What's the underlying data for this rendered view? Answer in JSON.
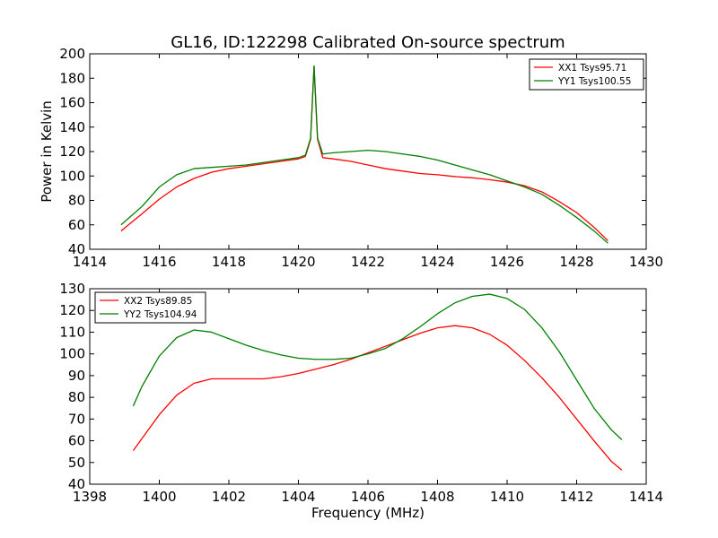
{
  "figure": {
    "title": "GL16, ID:122298 Calibrated On-source spectrum"
  },
  "chart_data": [
    {
      "type": "line",
      "title": "GL16, ID:122298 Calibrated On-source spectrum",
      "xlabel": "",
      "ylabel": "Power in Kelvin",
      "xlim": [
        1414,
        1430
      ],
      "ylim": [
        40,
        200
      ],
      "xticks": [
        "1414",
        "1416",
        "1418",
        "1420",
        "1422",
        "1424",
        "1426",
        "1428",
        "1430"
      ],
      "yticks": [
        "40",
        "60",
        "80",
        "100",
        "120",
        "140",
        "160",
        "180",
        "200"
      ],
      "legend_position": "top-right",
      "grid": false,
      "series": [
        {
          "name": "XX1 Tsys95.71",
          "color": "#ff0000",
          "x": [
            1414.9,
            1415.5,
            1416,
            1416.5,
            1417,
            1417.5,
            1418,
            1418.5,
            1419,
            1419.5,
            1420,
            1420.2,
            1420.35,
            1420.45,
            1420.55,
            1420.7,
            1421,
            1421.5,
            1422,
            1422.5,
            1423,
            1423.5,
            1424,
            1424.5,
            1425,
            1425.5,
            1426,
            1426.5,
            1427,
            1427.5,
            1428,
            1428.5,
            1428.9
          ],
          "y": [
            55,
            69,
            81,
            91,
            98,
            103,
            106,
            108,
            110,
            112,
            114,
            116,
            130,
            190,
            130,
            115,
            114,
            112,
            109,
            106,
            104,
            102,
            101,
            99.5,
            98.5,
            97,
            95,
            92,
            87,
            79,
            70,
            58,
            47
          ]
        },
        {
          "name": "YY1 Tsys100.55",
          "color": "#008000",
          "x": [
            1414.9,
            1415.5,
            1416,
            1416.5,
            1417,
            1417.5,
            1418,
            1418.5,
            1419,
            1419.5,
            1420,
            1420.2,
            1420.35,
            1420.45,
            1420.55,
            1420.7,
            1421,
            1421.5,
            1422,
            1422.5,
            1423,
            1423.5,
            1424,
            1424.5,
            1425,
            1425.5,
            1426,
            1426.5,
            1427,
            1427.5,
            1428,
            1428.5,
            1428.9
          ],
          "y": [
            60,
            75,
            91,
            101,
            106,
            107,
            108,
            109,
            111,
            113,
            115,
            117,
            131,
            190,
            131,
            118,
            119,
            120,
            121,
            120,
            118,
            116,
            113,
            109,
            105,
            101,
            96,
            91,
            85,
            76,
            66,
            55,
            45
          ]
        }
      ]
    },
    {
      "type": "line",
      "title": "",
      "xlabel": "Frequency (MHz)",
      "ylabel": "",
      "xlim": [
        1398,
        1414
      ],
      "ylim": [
        40,
        130
      ],
      "xticks": [
        "1398",
        "1400",
        "1402",
        "1404",
        "1406",
        "1408",
        "1410",
        "1412",
        "1414"
      ],
      "yticks": [
        "40",
        "50",
        "60",
        "70",
        "80",
        "90",
        "100",
        "110",
        "120",
        "130"
      ],
      "legend_position": "top-left",
      "grid": false,
      "series": [
        {
          "name": "XX2 Tsys89.85",
          "color": "#ff0000",
          "x": [
            1399.25,
            1399.5,
            1400,
            1400.5,
            1401,
            1401.5,
            1402,
            1402.5,
            1403,
            1403.5,
            1404,
            1404.5,
            1405,
            1405.5,
            1406,
            1406.5,
            1407,
            1407.5,
            1408,
            1408.5,
            1409,
            1409.5,
            1410,
            1410.5,
            1411,
            1411.5,
            1412,
            1412.5,
            1413,
            1413.3
          ],
          "y": [
            55.5,
            61,
            72,
            81,
            86.5,
            88.5,
            88.5,
            88.5,
            88.5,
            89.5,
            91,
            93,
            95,
            97.5,
            100.5,
            103.5,
            106.5,
            109.5,
            112,
            113,
            112,
            109,
            104,
            97,
            89,
            80,
            70,
            60,
            50.5,
            46.5
          ]
        },
        {
          "name": "YY2 Tsys104.94",
          "color": "#008000",
          "x": [
            1399.25,
            1399.5,
            1400,
            1400.5,
            1401,
            1401.5,
            1402,
            1402.5,
            1403,
            1403.5,
            1404,
            1404.5,
            1405,
            1405.5,
            1406,
            1406.5,
            1407,
            1407.5,
            1408,
            1408.5,
            1409,
            1409.5,
            1410,
            1410.5,
            1411,
            1411.5,
            1412,
            1412.5,
            1413,
            1413.3
          ],
          "y": [
            76,
            85,
            99,
            107.5,
            111,
            110,
            107,
            104,
            101.5,
            99.5,
            98,
            97.5,
            97.5,
            98,
            100,
            102.5,
            107,
            112.5,
            118.5,
            123.5,
            126.5,
            127.5,
            125.5,
            120.5,
            112,
            101,
            88,
            75,
            65,
            60.5
          ]
        }
      ]
    }
  ]
}
